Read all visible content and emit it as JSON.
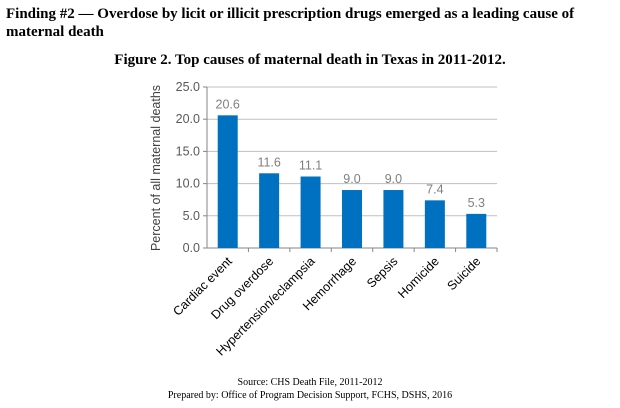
{
  "heading": "Finding #2 — Overdose by licit or illicit prescription drugs emerged as a leading cause of maternal death",
  "chart_data": {
    "type": "bar",
    "title": "Figure 2. Top causes of maternal death in Texas in 2011-2012.",
    "xlabel": "",
    "ylabel": "Percent of all maternal deaths",
    "categories": [
      "Cardiac event",
      "Drug overdose",
      "Hypertension/eclampsia",
      "Hemorrhage",
      "Sepsis",
      "Homicide",
      "Suicide"
    ],
    "values": [
      20.6,
      11.6,
      11.1,
      9.0,
      9.0,
      7.4,
      5.3
    ],
    "data_labels": [
      "20.6",
      "11.6",
      "11.1",
      "9.0",
      "9.0",
      "7.4",
      "5.3"
    ],
    "ylim": [
      0,
      25
    ],
    "yticks": [
      "0.0",
      "5.0",
      "10.0",
      "15.0",
      "20.0",
      "25.0"
    ],
    "grid": true,
    "legend": "none",
    "bar_color": "#0070c0"
  },
  "footer": {
    "source": "Source: CHS Death File, 2011-2012",
    "prepared": "Prepared by: Office of Program Decision Support, FCHS, DSHS, 2016"
  }
}
